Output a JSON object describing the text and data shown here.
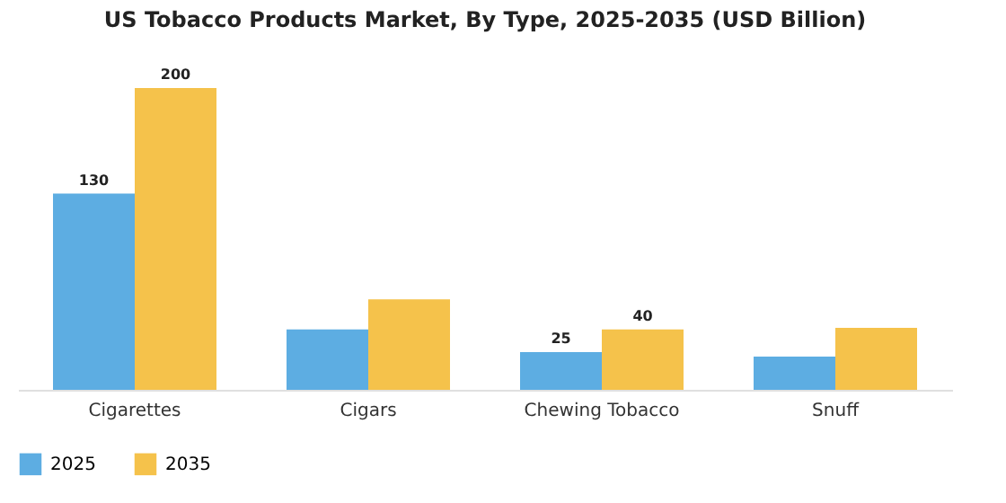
{
  "chart_data": {
    "type": "bar",
    "title": "US Tobacco Products Market, By Type, 2025-2035 (USD Billion)",
    "categories": [
      "Cigarettes",
      "Cigars",
      "Chewing Tobacco",
      "Snuff"
    ],
    "series": [
      {
        "name": "2025",
        "color": "#5dade2",
        "values": [
          130,
          40,
          25,
          22
        ],
        "value_labels": [
          "130",
          null,
          "25",
          null
        ]
      },
      {
        "name": "2035",
        "color": "#f5c24b",
        "values": [
          200,
          60,
          40,
          41
        ],
        "value_labels": [
          "200",
          null,
          "40",
          null
        ]
      }
    ],
    "legend": "bottom",
    "tick_labels": "x"
  }
}
